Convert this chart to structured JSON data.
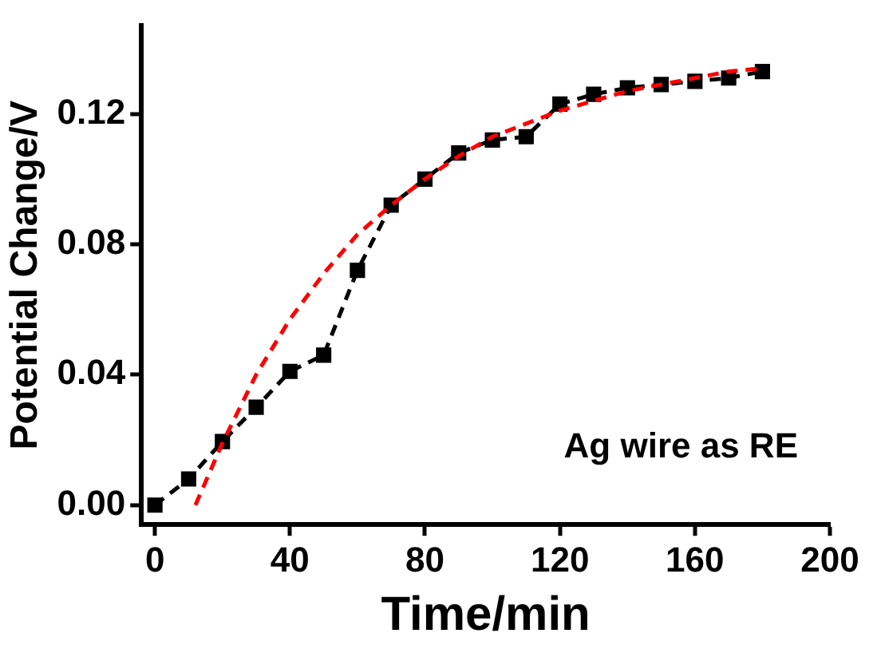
{
  "chart_data": {
    "type": "line",
    "xlabel": "Time/min",
    "ylabel": "Potential Change/V",
    "xlim": [
      -4,
      200
    ],
    "xticks": [
      0,
      40,
      80,
      120,
      160,
      200
    ],
    "ylim": [
      -0.006,
      0.147
    ],
    "yticks": [
      {
        "value": 0,
        "label": "0.00"
      },
      {
        "value": 0.04,
        "label": "0.04"
      },
      {
        "value": 0.08,
        "label": "0.08"
      },
      {
        "value": 0.12,
        "label": "0.12"
      }
    ],
    "grid": false,
    "legend": false,
    "series": [
      {
        "type": "line",
        "color": "#ff0000",
        "line_style": "dashed",
        "marker": "none",
        "x": [
          12,
          20,
          30,
          40,
          50,
          60,
          70,
          80,
          90,
          100,
          110,
          120,
          130,
          140,
          150,
          160,
          170,
          180
        ],
        "values": [
          0,
          0.019,
          0.04,
          0.057,
          0.071,
          0.083,
          0.092,
          0.1,
          0.107,
          0.113,
          0.117,
          0.121,
          0.124,
          0.127,
          0.129,
          0.131,
          0.133,
          0.134
        ]
      },
      {
        "type": "line",
        "color": "#000000",
        "line_style": "dashed",
        "marker": "square",
        "x": [
          0,
          10,
          20,
          30,
          40,
          50,
          60,
          70,
          80,
          90,
          100,
          110,
          120,
          130,
          140,
          150,
          160,
          170,
          180
        ],
        "values": [
          0,
          0.008,
          0.0195,
          0.03,
          0.041,
          0.046,
          0.072,
          0.092,
          0.1,
          0.108,
          0.112,
          0.113,
          0.123,
          0.126,
          0.128,
          0.129,
          0.13,
          0.131,
          0.133
        ]
      }
    ],
    "annotations": [
      "Ag wire as RE"
    ]
  }
}
